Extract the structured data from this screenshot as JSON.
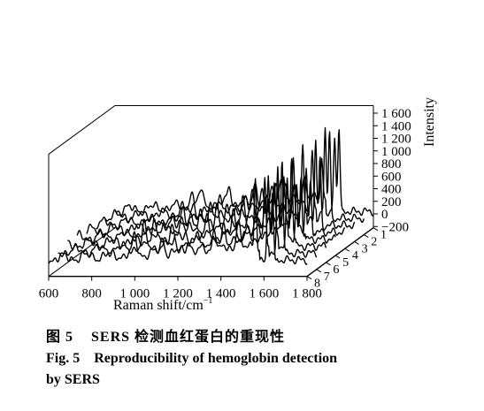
{
  "chart_data": {
    "type": "line",
    "subtype": "3d-waterfall",
    "xlabel": "Raman shift/cm",
    "xlabel_sup": "−1",
    "ylabel": "Intensity",
    "x_ticks": [
      "600",
      "800",
      "1 000",
      "1 200",
      "1 400",
      "1 600",
      "1 800"
    ],
    "xlim": [
      600,
      1800
    ],
    "z_ticks": [
      "−200",
      "0",
      "200",
      "400",
      "600",
      "800",
      "1 000",
      "1 200",
      "1 400",
      "1 600"
    ],
    "zlim": [
      -200,
      1600
    ],
    "depth_ticks": [
      "1",
      "2",
      "3",
      "4",
      "5",
      "6",
      "7",
      "8"
    ],
    "series": [
      {
        "name": "1"
      },
      {
        "name": "2"
      },
      {
        "name": "3"
      },
      {
        "name": "4"
      },
      {
        "name": "5"
      },
      {
        "name": "6"
      },
      {
        "name": "7"
      },
      {
        "name": "8"
      }
    ],
    "peaks": [
      {
        "x": 1000,
        "height": 330
      },
      {
        "x": 1130,
        "height": 330
      },
      {
        "x": 1250,
        "height": 330
      },
      {
        "x": 1370,
        "height": 520
      },
      {
        "x": 1480,
        "height": 560
      },
      {
        "x": 1560,
        "height": 1150
      },
      {
        "x": 1620,
        "height": 1400
      },
      {
        "x": 1640,
        "height": 1400
      }
    ]
  },
  "caption": {
    "cn_label": "图 5",
    "cn_text": "SERS 检测血红蛋白的重现性",
    "en_label": "Fig. 5",
    "en_text": "Reproducibility of hemoglobin detection",
    "en_text_cont": "by SERS"
  }
}
